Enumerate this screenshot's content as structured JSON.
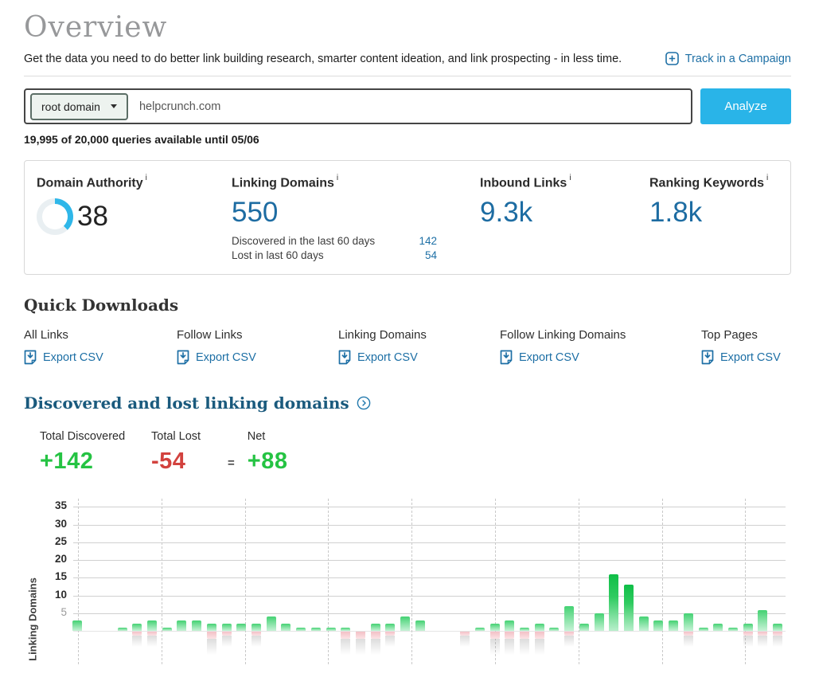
{
  "colors": {
    "accent_blue": "#1d6fa5",
    "metric_blue": "#1d6ca2",
    "analyze_cyan": "#29b4e8",
    "gauge_cyan": "#2fb7e9",
    "positive_green": "#25c343",
    "negative_red": "#d2423e",
    "section_heading_navy": "#1a5a7d"
  },
  "page": {
    "title": "Overview",
    "subtitle": "Get the data you need to do better link building research, smarter content ideation, and link prospecting - in less time.",
    "track_campaign_label": "Track in a Campaign"
  },
  "search": {
    "scope_label": "root domain",
    "query": "helpcrunch.com",
    "analyze_label": "Analyze",
    "quota_text": "19,995 of 20,000 queries available until 05/06"
  },
  "metrics": {
    "info_mark": "i",
    "domain_authority": {
      "label": "Domain Authority",
      "value": "38",
      "gauge_pct": 38
    },
    "linking_domains": {
      "label": "Linking Domains",
      "value": "550",
      "rows": [
        {
          "label": "Discovered in the last 60 days",
          "value": "142"
        },
        {
          "label": "Lost in last 60 days",
          "value": "54"
        }
      ]
    },
    "inbound_links": {
      "label": "Inbound Links",
      "value": "9.3k"
    },
    "ranking_keywords": {
      "label": "Ranking Keywords",
      "value": "1.8k"
    }
  },
  "quick_downloads": {
    "heading": "Quick Downloads",
    "items": [
      {
        "label": "All Links",
        "action": "Export CSV"
      },
      {
        "label": "Follow Links",
        "action": "Export CSV"
      },
      {
        "label": "Linking Domains",
        "action": "Export CSV"
      },
      {
        "label": "Follow Linking Domains",
        "action": "Export CSV"
      },
      {
        "label": "Top Pages",
        "action": "Export CSV"
      }
    ]
  },
  "section": {
    "heading": "Discovered and lost linking domains",
    "totals": {
      "discovered_label": "Total Discovered",
      "discovered_value": "+142",
      "lost_label": "Total Lost",
      "lost_value": "-54",
      "equals": "=",
      "net_label": "Net",
      "net_value": "+88"
    }
  },
  "chart_data": {
    "type": "bar",
    "title": "Discovered and lost linking domains",
    "xlabel": "",
    "ylabel": "Linking Domains",
    "yticks": [
      35,
      30,
      25,
      20,
      15,
      10,
      5
    ],
    "ylim": [
      -8,
      37
    ],
    "grid": "horizontal-solid, vertical-dashed",
    "legend_position": "none",
    "series": [
      {
        "name": "Discovered",
        "color": "#7ee2a4",
        "values": [
          3,
          0,
          0,
          1,
          2,
          3,
          1,
          3,
          3,
          2,
          2,
          2,
          2,
          4,
          2,
          1,
          1,
          1,
          1,
          0,
          2,
          2,
          4,
          3,
          0,
          0,
          0,
          1,
          2,
          3,
          1,
          2,
          1,
          7,
          2,
          5,
          16,
          13,
          4,
          3,
          3,
          5,
          1,
          2,
          1,
          2,
          6,
          2
        ]
      },
      {
        "name": "Lost",
        "color": "#f2bcc2",
        "values": [
          0,
          0,
          0,
          0,
          -1,
          -1,
          0,
          0,
          0,
          -2,
          -1,
          0,
          -1,
          0,
          0,
          0,
          0,
          0,
          -2,
          -2,
          -2,
          -1,
          0,
          0,
          0,
          0,
          -1,
          0,
          -2,
          -2,
          -2,
          -2,
          0,
          -1,
          0,
          0,
          0,
          0,
          0,
          0,
          0,
          -1,
          0,
          0,
          0,
          -1,
          -1,
          -1
        ]
      }
    ]
  }
}
